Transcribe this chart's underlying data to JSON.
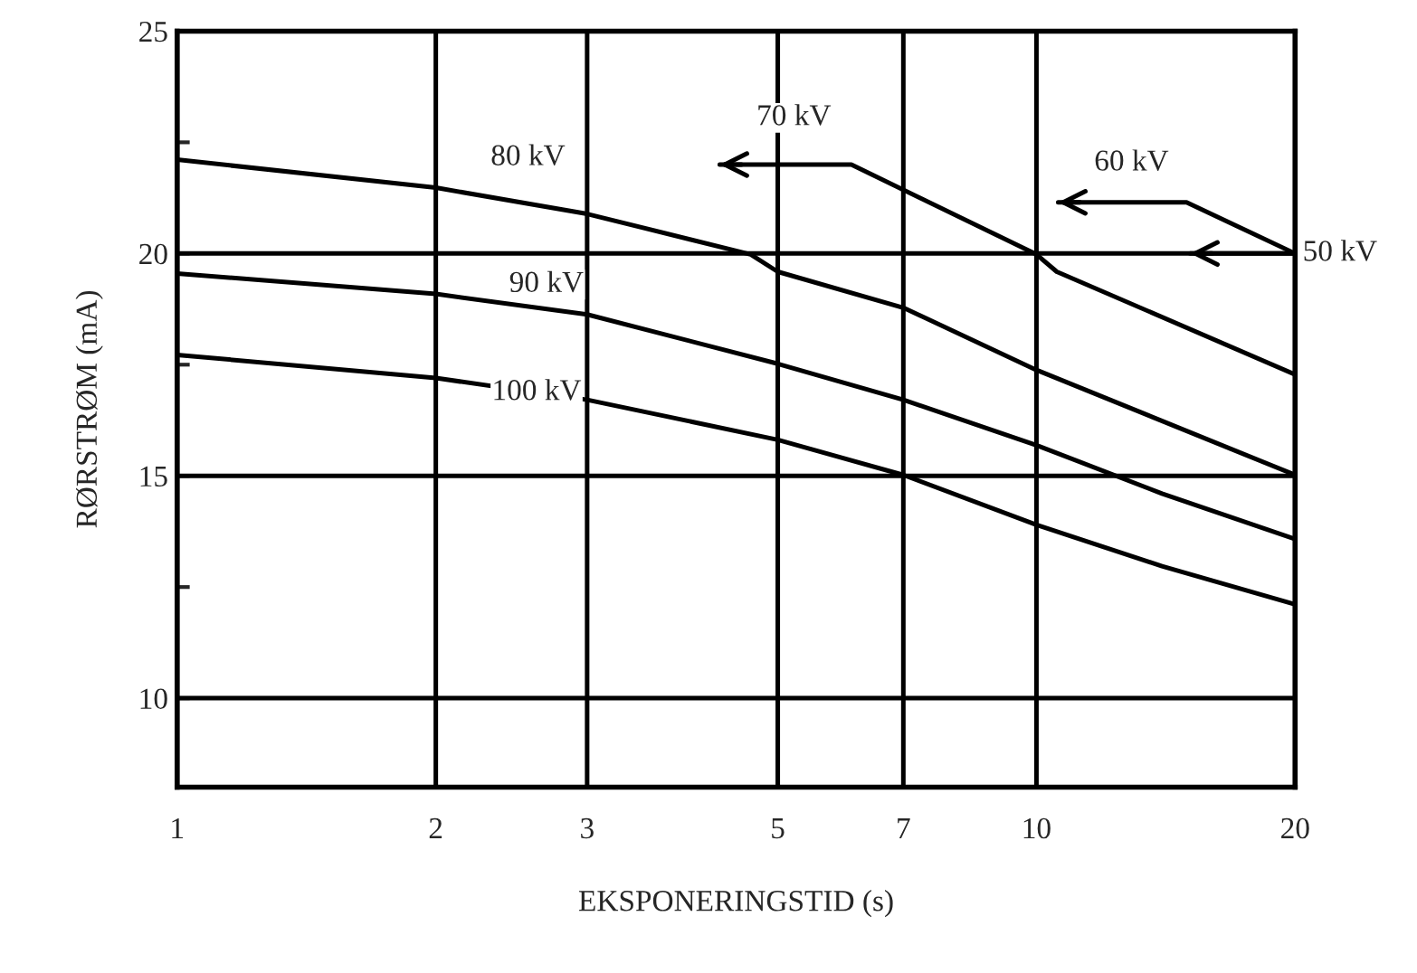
{
  "chart_data": {
    "type": "line",
    "xlabel": "EKSPONERINGSTID (s)",
    "ylabel": "RØRSTRØM (mA)",
    "log": "x",
    "xlim": [
      1,
      20
    ],
    "xticks": [
      1,
      2,
      3,
      5,
      7,
      10,
      20
    ],
    "ylim": [
      8,
      25
    ],
    "yticks": [
      10,
      {
        "value": 12.5,
        "label": null
      },
      15,
      {
        "value": 17.5,
        "label": null
      },
      20,
      {
        "value": 22.5,
        "label": null
      },
      25
    ],
    "grid": true,
    "marker": "none",
    "line_style": "solid",
    "series": [
      {
        "color": "#000000",
        "x": [
          1,
          2,
          3,
          5,
          7,
          10,
          14,
          20
        ],
        "values": [
          17.72,
          17.2,
          16.71,
          15.81,
          15.02,
          13.9,
          12.97,
          12.11
        ]
      },
      {
        "color": "#000000",
        "x": [
          1,
          2,
          3,
          5,
          7,
          10,
          14,
          20
        ],
        "values": [
          19.55,
          19.09,
          18.63,
          17.52,
          16.71,
          15.69,
          14.6,
          13.58
        ]
      },
      {
        "color": "#000000",
        "x": [
          1,
          2,
          3,
          4.65,
          5,
          7,
          10,
          20
        ],
        "values": [
          22.11,
          21.48,
          20.89,
          19.98,
          19.59,
          18.78,
          17.38,
          15.02
        ]
      },
      {
        "color": "#000000",
        "x": [
          4.28,
          6.09,
          10,
          10.56,
          20
        ],
        "values": [
          22.0,
          22.0,
          19.98,
          19.59,
          17.28
        ]
      },
      {
        "color": "#000000",
        "x": [
          10.6,
          14.95,
          20
        ],
        "values": [
          21.15,
          21.15,
          20.0
        ]
      },
      {
        "color": "#000000",
        "x": [
          15.1,
          20
        ],
        "values": [
          20.0,
          20.0
        ]
      }
    ],
    "annotations": [
      {
        "text": "100 kV",
        "x": 2.62,
        "y": 16.87
      },
      {
        "text": "90 kV",
        "x": 2.69,
        "y": 19.3
      },
      {
        "text": "80 kV",
        "x": 2.56,
        "y": 22.15
      },
      {
        "text": "70 kV",
        "x": 5.22,
        "y": 23.05
      },
      {
        "text": "60 kV",
        "x": 12.9,
        "y": 22.03
      },
      {
        "text": "50 kV",
        "x": 20,
        "y": 20.0
      }
    ]
  }
}
